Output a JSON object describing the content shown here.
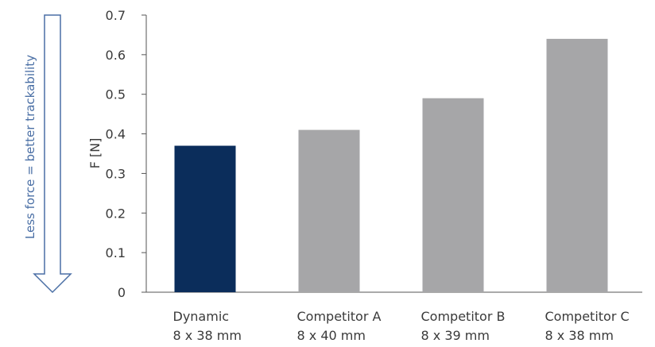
{
  "chart_data": {
    "type": "bar",
    "categories": [
      {
        "name": "Dynamic",
        "size": "8 x 38 mm"
      },
      {
        "name": "Competitor A",
        "size": "8 x 40 mm"
      },
      {
        "name": "Competitor B",
        "size": "8 x 39 mm"
      },
      {
        "name": "Competitor C",
        "size": "8 x 38 mm"
      }
    ],
    "values": [
      0.37,
      0.41,
      0.49,
      0.64
    ],
    "ylabel": "F [N]",
    "ylim": [
      0,
      0.7
    ],
    "yticks": [
      "0",
      "0.1",
      "0.2",
      "0.3",
      "0.4",
      "0.5",
      "0.6",
      "0.7"
    ],
    "grid": false,
    "colors": {
      "highlight": "#0b2d5b",
      "default": "#a6a6a8",
      "side_note": "#4a6fa5"
    },
    "annotation": "Less force = better trackability"
  }
}
